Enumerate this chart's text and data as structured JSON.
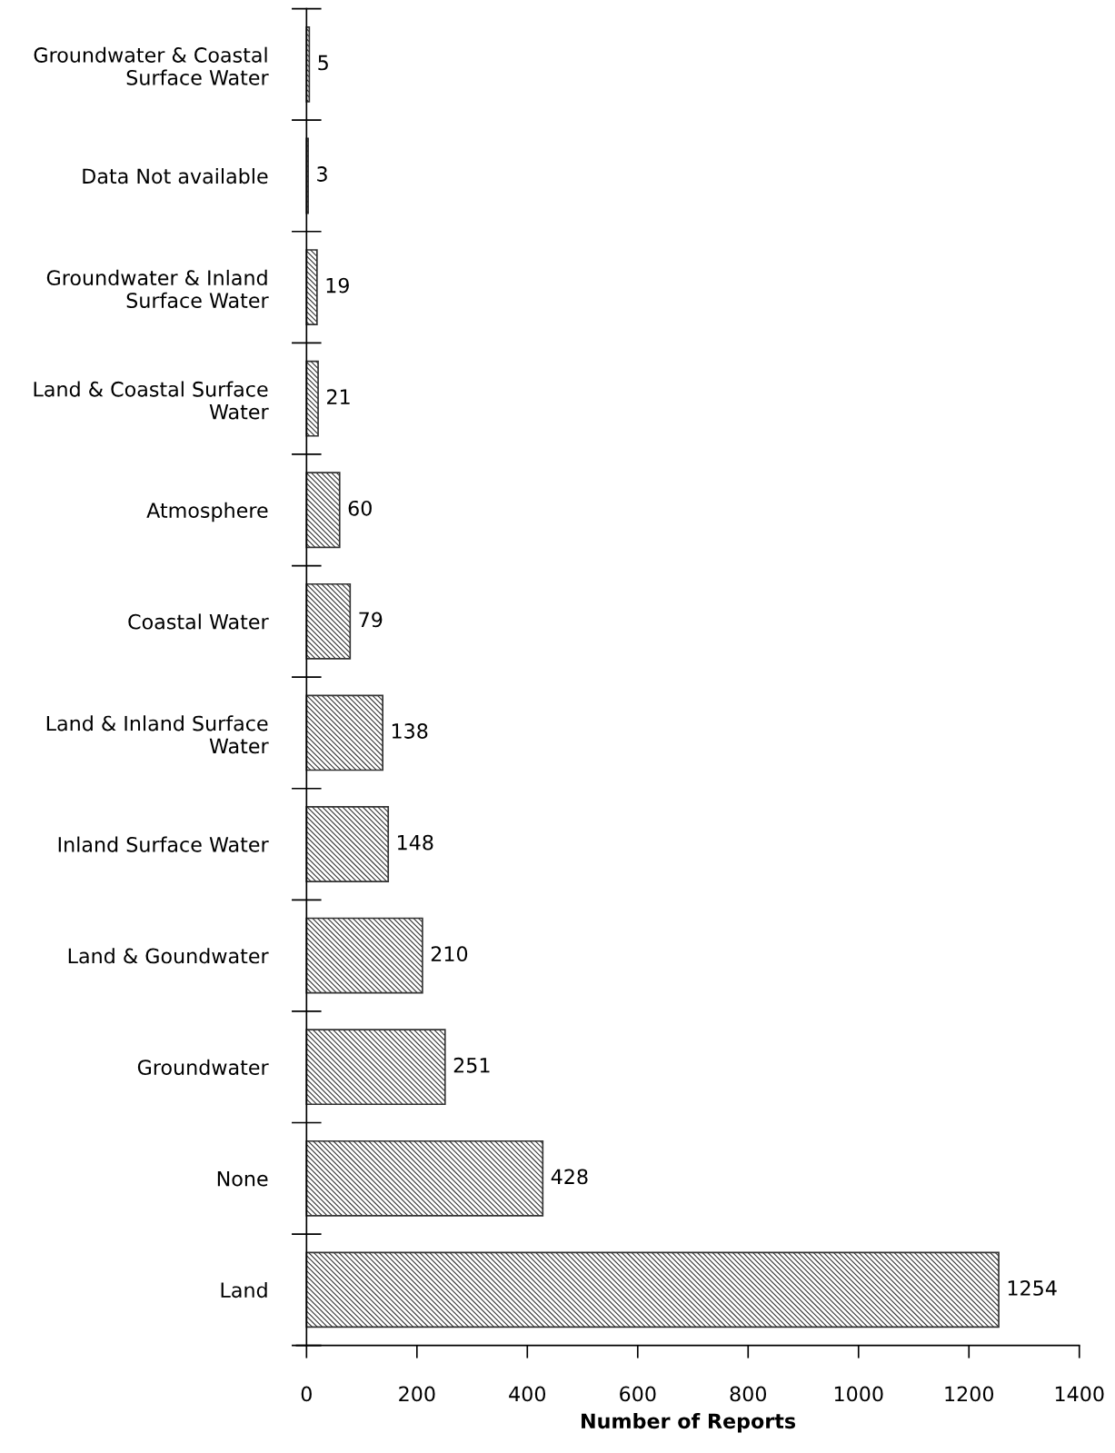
{
  "chart_data": {
    "type": "bar",
    "orientation": "horizontal",
    "xlabel": "Number of Reports",
    "categories": [
      "Groundwater & Coastal\nSurface Water",
      "Data Not available",
      "Groundwater & Inland\nSurface Water",
      "Land & Coastal Surface\nWater",
      "Atmosphere",
      "Coastal Water",
      "Land & Inland Surface\nWater",
      "Inland Surface Water",
      "Land & Goundwater",
      "Groundwater",
      "None",
      "Land"
    ],
    "values": [
      5,
      3,
      19,
      21,
      60,
      79,
      138,
      148,
      210,
      251,
      428,
      1254
    ],
    "color": "#333333",
    "xlim": [
      -18,
      1400
    ],
    "xticks": [
      0,
      200,
      400,
      600,
      800,
      1000,
      1200,
      1400
    ],
    "data_labels": true,
    "grid": false,
    "legend": false
  }
}
